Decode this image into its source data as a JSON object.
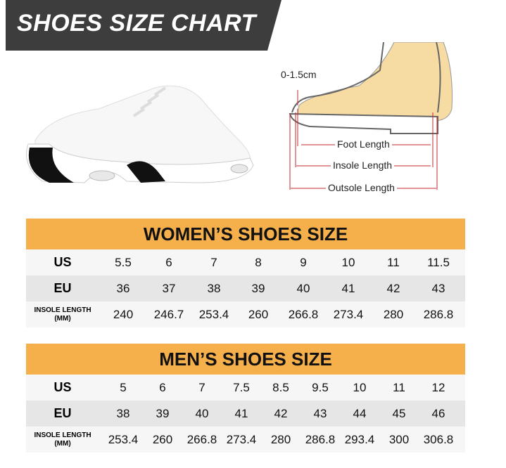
{
  "title": "SHOES SIZE CHART",
  "diagram": {
    "toe_gap": "0-1.5cm",
    "labels": [
      "Foot Length",
      "Insole Length",
      "Outsole Length"
    ]
  },
  "colors": {
    "banner": "#3d3d3d",
    "table_header": "#f5b04c",
    "arrow": "#c0282e"
  },
  "women": {
    "title": "WOMEN’S SHOES SIZE",
    "rows": [
      {
        "label": "US",
        "values": [
          "5.5",
          "6",
          "7",
          "8",
          "9",
          "10",
          "11",
          "11.5"
        ]
      },
      {
        "label": "EU",
        "values": [
          "36",
          "37",
          "38",
          "39",
          "40",
          "41",
          "42",
          "43"
        ]
      },
      {
        "label": "INSOLE LENGTH",
        "sublabel": "(MM)",
        "values": [
          "240",
          "246.7",
          "253.4",
          "260",
          "266.8",
          "273.4",
          "280",
          "286.8"
        ]
      }
    ]
  },
  "men": {
    "title": "MEN’S SHOES SIZE",
    "rows": [
      {
        "label": "US",
        "values": [
          "5",
          "6",
          "7",
          "7.5",
          "8.5",
          "9.5",
          "10",
          "11",
          "12"
        ]
      },
      {
        "label": "EU",
        "values": [
          "38",
          "39",
          "40",
          "41",
          "42",
          "43",
          "44",
          "45",
          "46"
        ]
      },
      {
        "label": "INSOLE LENGTH",
        "sublabel": "(MM)",
        "values": [
          "253.4",
          "260",
          "266.8",
          "273.4",
          "280",
          "286.8",
          "293.4",
          "300",
          "306.8"
        ]
      }
    ]
  }
}
